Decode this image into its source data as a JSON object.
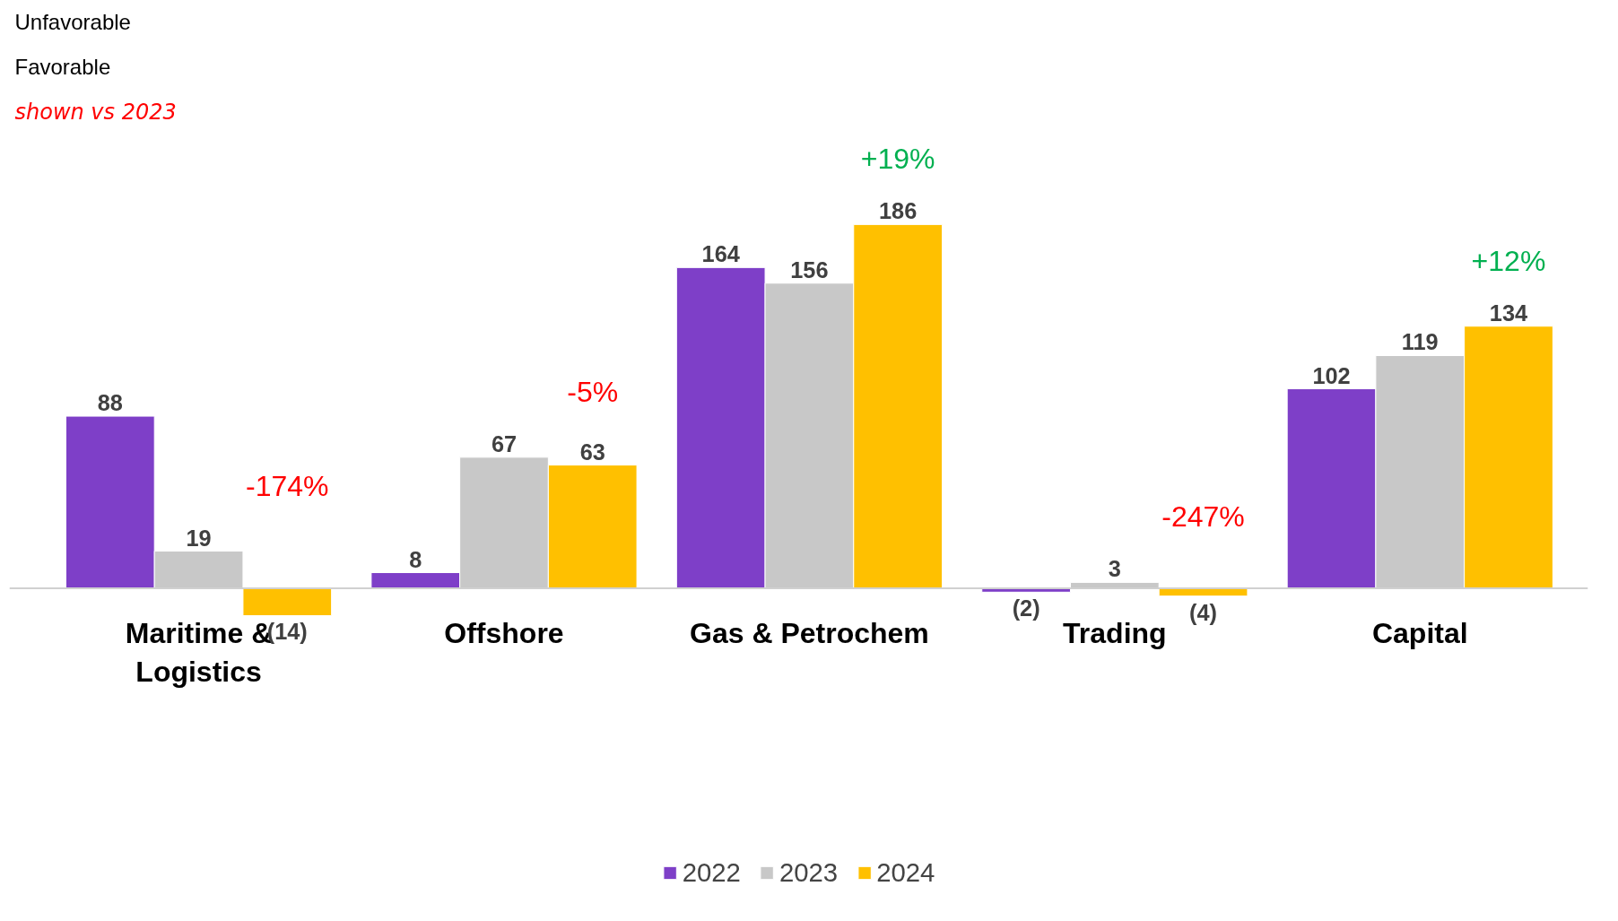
{
  "chart_data": {
    "type": "bar",
    "categories": [
      "Maritime & Logistics",
      "Offshore",
      "Gas & Petrochem",
      "Trading",
      "Capital"
    ],
    "series": [
      {
        "name": "2022",
        "color": "#7e3fc8",
        "values": [
          88,
          8,
          164,
          -2,
          102
        ],
        "value_labels": [
          "88",
          "8",
          "164",
          "(2)",
          "102"
        ]
      },
      {
        "name": "2023",
        "color": "#c8c8c8",
        "values": [
          19,
          67,
          156,
          3,
          119
        ],
        "value_labels": [
          "19",
          "67",
          "156",
          "3",
          "119"
        ]
      },
      {
        "name": "2024",
        "color": "#ffc000",
        "values": [
          -14,
          63,
          186,
          -4,
          134
        ],
        "value_labels": [
          "(14)",
          "63",
          "186",
          "(4)",
          "134"
        ]
      }
    ],
    "tick_labels": "x",
    "grid": false,
    "legend": "bottom",
    "annotations": [
      "Unfavorable",
      "Favorable",
      "shown vs 2023",
      "-174%",
      "-5%",
      "+19%",
      "-247%",
      "+12%"
    ]
  }
}
